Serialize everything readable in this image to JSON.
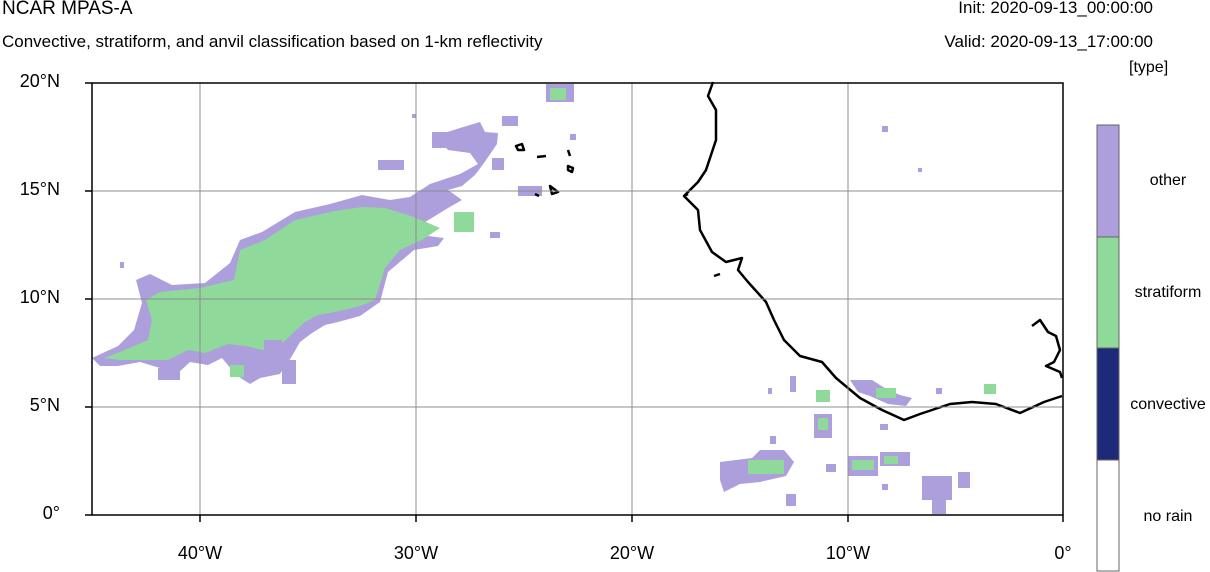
{
  "header": {
    "model_title": "NCAR MPAS-A",
    "subtitle": "Convective, stratiform, and anvil classification based on 1-km reflectivity",
    "init": "Init: 2020-09-13_00:00:00",
    "valid": "Valid: 2020-09-13_17:00:00",
    "units": "[type]"
  },
  "map": {
    "projection": "cylindrical equidistant",
    "lon_range": [
      -45,
      0
    ],
    "lat_range": [
      0,
      20
    ],
    "grid_lines": true,
    "y_ticks": [
      "20°N",
      "15°N",
      "10°N",
      "5°N",
      "0°"
    ],
    "x_ticks": [
      "40°W",
      "30°W",
      "20°W",
      "10°W",
      "0°"
    ]
  },
  "legend": {
    "categories": [
      {
        "label": "other",
        "color": "#ad9fdb"
      },
      {
        "label": "stratiform",
        "color": "#8fd99a"
      },
      {
        "label": "convective",
        "color": "#1d2a79"
      },
      {
        "label": "no rain",
        "color": "#ffffff"
      }
    ]
  },
  "colors": {
    "other": "#ad9fdb",
    "stratiform": "#8fd99a",
    "convective": "#1d2a79",
    "coastline": "#000000",
    "grid": "#8c8c8c"
  }
}
